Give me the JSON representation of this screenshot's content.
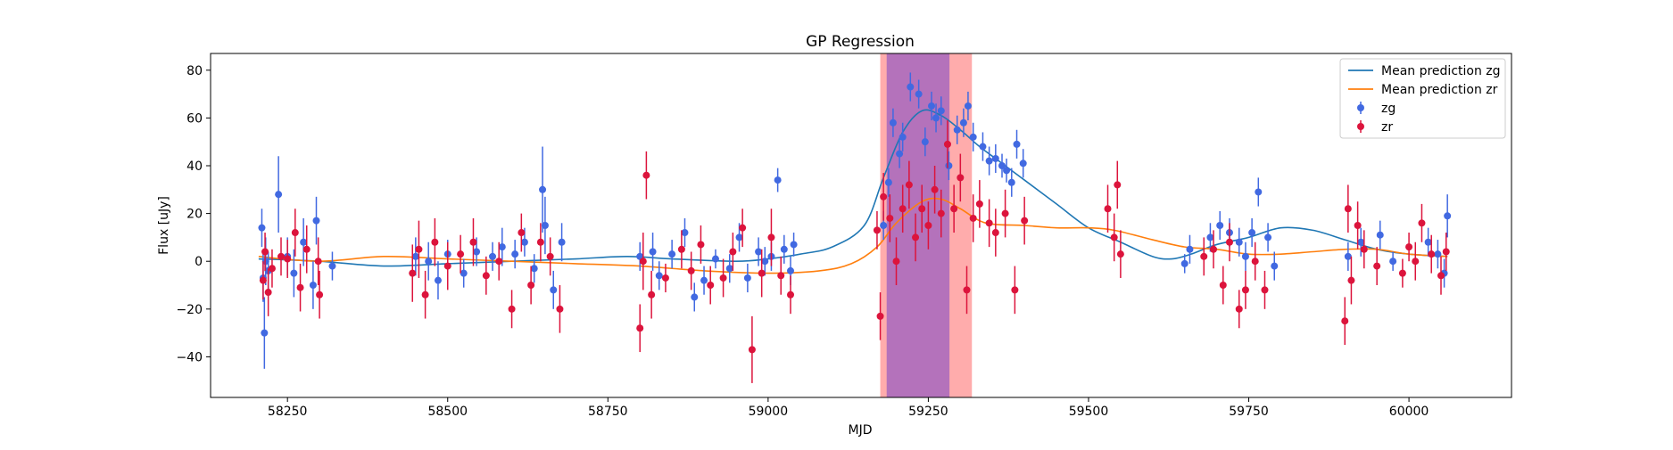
{
  "chart_data": {
    "type": "scatter",
    "title": "GP Regression",
    "xlabel": "MJD",
    "ylabel": "Flux [uJy]",
    "xlim": [
      58130,
      60160
    ],
    "ylim": [
      -57,
      87
    ],
    "xticks": [
      58250,
      58500,
      58750,
      59000,
      59250,
      59500,
      59750,
      60000
    ],
    "yticks": [
      -40,
      -20,
      0,
      20,
      40,
      60,
      80
    ],
    "grid": false,
    "legend_position": "top-right",
    "colors": {
      "zg_points": "#4169e1",
      "zr_points": "#dc143c",
      "zg_mean": "#1f77b4",
      "zr_mean": "#ff7f0e",
      "shade_red": "#ff7f7f",
      "shade_purple": "#9b5fc0"
    },
    "shaded_regions": [
      {
        "x0": 59175,
        "x1": 59318,
        "color": "#ff7f7f",
        "opacity": 0.65
      },
      {
        "x0": 59185,
        "x1": 59283,
        "color": "#9b5fc0",
        "opacity": 0.75
      }
    ],
    "legend": [
      {
        "label": "Mean prediction zg",
        "kind": "line",
        "color": "#1f77b4"
      },
      {
        "label": "Mean prediction zr",
        "kind": "line",
        "color": "#ff7f0e"
      },
      {
        "label": "zg",
        "kind": "errorbar",
        "color": "#4169e1"
      },
      {
        "label": "zr",
        "kind": "errorbar",
        "color": "#dc143c"
      }
    ],
    "series": [
      {
        "name": "Mean prediction zg",
        "kind": "line",
        "color": "#1f77b4",
        "x": [
          58205,
          58300,
          58400,
          58500,
          58600,
          58700,
          58780,
          58850,
          58950,
          59000,
          59050,
          59100,
          59150,
          59180,
          59210,
          59240,
          59270,
          59300,
          59330,
          59360,
          59400,
          59450,
          59500,
          59550,
          59600,
          59630,
          59660,
          59700,
          59750,
          59800,
          59850,
          59900,
          59950,
          60000,
          60060
        ],
        "y": [
          1,
          0,
          -2,
          -1,
          0,
          1,
          2,
          1,
          0,
          1,
          3,
          6,
          15,
          35,
          54,
          63,
          61,
          55,
          48,
          42,
          34,
          24,
          14,
          8,
          2,
          1,
          3,
          7,
          10,
          14,
          13,
          9,
          5,
          3,
          2
        ]
      },
      {
        "name": "Mean prediction zr",
        "kind": "line",
        "color": "#ff7f0e",
        "x": [
          58205,
          58300,
          58400,
          58500,
          58600,
          58700,
          58800,
          58900,
          59000,
          59080,
          59130,
          59170,
          59200,
          59240,
          59270,
          59300,
          59340,
          59400,
          59450,
          59500,
          59540,
          59600,
          59650,
          59700,
          59750,
          59800,
          59850,
          59900,
          59950,
          60000,
          60060
        ],
        "y": [
          2,
          0,
          2,
          1,
          0,
          -1,
          -2,
          -4,
          -5,
          -4,
          -1,
          6,
          16,
          25,
          26,
          22,
          16,
          15,
          14,
          14,
          13,
          9,
          6,
          5,
          3,
          3,
          4,
          5,
          5,
          3,
          2
        ]
      },
      {
        "name": "zg",
        "kind": "errorbar",
        "color": "#4169e1",
        "points": [
          [
            58210,
            14,
            8
          ],
          [
            58212,
            -7,
            10
          ],
          [
            58214,
            -30,
            15
          ],
          [
            58216,
            0,
            10
          ],
          [
            58220,
            -4,
            8
          ],
          [
            58236,
            28,
            16
          ],
          [
            58250,
            2,
            8
          ],
          [
            58260,
            -5,
            10
          ],
          [
            58275,
            8,
            10
          ],
          [
            58290,
            -10,
            10
          ],
          [
            58295,
            17,
            10
          ],
          [
            58320,
            -2,
            6
          ],
          [
            58450,
            2,
            8
          ],
          [
            58470,
            0,
            8
          ],
          [
            58485,
            -8,
            8
          ],
          [
            58500,
            3,
            6
          ],
          [
            58525,
            -5,
            6
          ],
          [
            58545,
            4,
            6
          ],
          [
            58570,
            2,
            6
          ],
          [
            58585,
            6,
            8
          ],
          [
            58605,
            3,
            6
          ],
          [
            58620,
            8,
            6
          ],
          [
            58635,
            -3,
            6
          ],
          [
            58648,
            30,
            18
          ],
          [
            58652,
            15,
            12
          ],
          [
            58665,
            -12,
            8
          ],
          [
            58678,
            8,
            8
          ],
          [
            58800,
            2,
            6
          ],
          [
            58820,
            4,
            8
          ],
          [
            58830,
            -6,
            6
          ],
          [
            58850,
            3,
            6
          ],
          [
            58870,
            12,
            6
          ],
          [
            58885,
            -15,
            6
          ],
          [
            58900,
            -8,
            6
          ],
          [
            58918,
            1,
            4
          ],
          [
            58940,
            -3,
            6
          ],
          [
            58955,
            10,
            6
          ],
          [
            58968,
            -7,
            6
          ],
          [
            58985,
            4,
            6
          ],
          [
            58995,
            0,
            6
          ],
          [
            59005,
            2,
            6
          ],
          [
            59015,
            34,
            5
          ],
          [
            59025,
            5,
            6
          ],
          [
            59035,
            -4,
            6
          ],
          [
            59040,
            7,
            5
          ],
          [
            59180,
            15,
            6
          ],
          [
            59188,
            33,
            6
          ],
          [
            59195,
            58,
            6
          ],
          [
            59205,
            45,
            6
          ],
          [
            59210,
            52,
            6
          ],
          [
            59222,
            73,
            6
          ],
          [
            59235,
            70,
            6
          ],
          [
            59245,
            50,
            6
          ],
          [
            59255,
            65,
            6
          ],
          [
            59262,
            60,
            6
          ],
          [
            59270,
            63,
            6
          ],
          [
            59282,
            40,
            6
          ],
          [
            59295,
            55,
            6
          ],
          [
            59305,
            58,
            6
          ],
          [
            59312,
            65,
            6
          ],
          [
            59320,
            52,
            6
          ],
          [
            59335,
            48,
            6
          ],
          [
            59345,
            42,
            6
          ],
          [
            59355,
            43,
            6
          ],
          [
            59365,
            40,
            5
          ],
          [
            59372,
            38,
            5
          ],
          [
            59380,
            33,
            6
          ],
          [
            59388,
            49,
            6
          ],
          [
            59398,
            41,
            6
          ],
          [
            59650,
            -1,
            4
          ],
          [
            59658,
            5,
            6
          ],
          [
            59690,
            10,
            6
          ],
          [
            59705,
            15,
            6
          ],
          [
            59720,
            12,
            6
          ],
          [
            59735,
            8,
            6
          ],
          [
            59745,
            2,
            6
          ],
          [
            59755,
            12,
            6
          ],
          [
            59765,
            29,
            6
          ],
          [
            59780,
            10,
            6
          ],
          [
            59790,
            -2,
            6
          ],
          [
            59905,
            2,
            6
          ],
          [
            59925,
            8,
            6
          ],
          [
            59955,
            11,
            6
          ],
          [
            59975,
            0,
            4
          ],
          [
            60030,
            8,
            6
          ],
          [
            60045,
            3,
            6
          ],
          [
            60055,
            -5,
            6
          ],
          [
            60060,
            19,
            9
          ]
        ]
      },
      {
        "name": "zr",
        "kind": "errorbar",
        "color": "#dc143c",
        "points": [
          [
            58212,
            -8,
            8
          ],
          [
            58215,
            4,
            8
          ],
          [
            58220,
            -13,
            10
          ],
          [
            58226,
            -3,
            8
          ],
          [
            58240,
            2,
            8
          ],
          [
            58250,
            1,
            8
          ],
          [
            58262,
            12,
            10
          ],
          [
            58270,
            -11,
            10
          ],
          [
            58280,
            5,
            10
          ],
          [
            58298,
            0,
            10
          ],
          [
            58300,
            -14,
            10
          ],
          [
            58445,
            -5,
            12
          ],
          [
            58455,
            5,
            12
          ],
          [
            58465,
            -14,
            10
          ],
          [
            58480,
            8,
            10
          ],
          [
            58500,
            -2,
            10
          ],
          [
            58520,
            3,
            8
          ],
          [
            58540,
            8,
            10
          ],
          [
            58560,
            -6,
            8
          ],
          [
            58580,
            0,
            8
          ],
          [
            58600,
            -20,
            8
          ],
          [
            58615,
            12,
            8
          ],
          [
            58630,
            -10,
            8
          ],
          [
            58645,
            8,
            8
          ],
          [
            58660,
            2,
            8
          ],
          [
            58675,
            -20,
            10
          ],
          [
            58800,
            -28,
            10
          ],
          [
            58805,
            0,
            12
          ],
          [
            58810,
            36,
            10
          ],
          [
            58818,
            -14,
            10
          ],
          [
            58840,
            -7,
            6
          ],
          [
            58865,
            5,
            8
          ],
          [
            58880,
            -4,
            8
          ],
          [
            58895,
            7,
            8
          ],
          [
            58910,
            -10,
            8
          ],
          [
            58930,
            -7,
            8
          ],
          [
            58945,
            4,
            8
          ],
          [
            58960,
            14,
            8
          ],
          [
            58975,
            -37,
            14
          ],
          [
            58990,
            -5,
            10
          ],
          [
            59005,
            10,
            12
          ],
          [
            59020,
            -6,
            8
          ],
          [
            59035,
            -14,
            8
          ],
          [
            59170,
            13,
            8
          ],
          [
            59175,
            -23,
            10
          ],
          [
            59180,
            27,
            10
          ],
          [
            59190,
            18,
            10
          ],
          [
            59200,
            0,
            10
          ],
          [
            59210,
            22,
            10
          ],
          [
            59220,
            32,
            10
          ],
          [
            59230,
            10,
            10
          ],
          [
            59240,
            22,
            10
          ],
          [
            59250,
            15,
            10
          ],
          [
            59260,
            30,
            10
          ],
          [
            59270,
            20,
            10
          ],
          [
            59280,
            49,
            10
          ],
          [
            59290,
            22,
            10
          ],
          [
            59300,
            35,
            10
          ],
          [
            59310,
            -12,
            10
          ],
          [
            59320,
            18,
            10
          ],
          [
            59330,
            24,
            10
          ],
          [
            59345,
            16,
            10
          ],
          [
            59355,
            12,
            10
          ],
          [
            59370,
            20,
            10
          ],
          [
            59385,
            -12,
            10
          ],
          [
            59400,
            17,
            10
          ],
          [
            59530,
            22,
            10
          ],
          [
            59540,
            10,
            10
          ],
          [
            59545,
            32,
            10
          ],
          [
            59550,
            3,
            10
          ],
          [
            59680,
            2,
            8
          ],
          [
            59695,
            5,
            8
          ],
          [
            59710,
            -10,
            8
          ],
          [
            59720,
            8,
            8
          ],
          [
            59735,
            -20,
            8
          ],
          [
            59745,
            -12,
            8
          ],
          [
            59760,
            0,
            8
          ],
          [
            59775,
            -12,
            8
          ],
          [
            59900,
            -25,
            10
          ],
          [
            59905,
            22,
            10
          ],
          [
            59910,
            -8,
            10
          ],
          [
            59920,
            15,
            10
          ],
          [
            59930,
            5,
            8
          ],
          [
            59950,
            -2,
            8
          ],
          [
            59990,
            -5,
            6
          ],
          [
            60000,
            6,
            6
          ],
          [
            60010,
            0,
            8
          ],
          [
            60020,
            16,
            8
          ],
          [
            60035,
            3,
            8
          ],
          [
            60050,
            -6,
            8
          ],
          [
            60058,
            4,
            8
          ]
        ]
      }
    ]
  }
}
